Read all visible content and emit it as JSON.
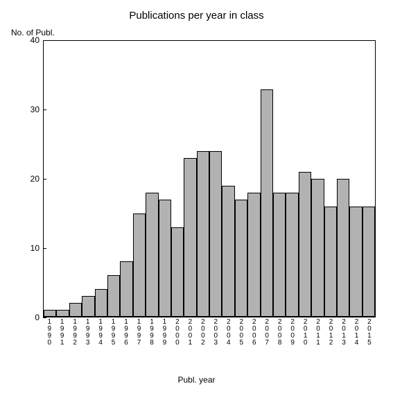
{
  "chart": {
    "type": "bar",
    "title": "Publications per year in class",
    "title_fontsize": 15,
    "ylabel": "No. of Publ.",
    "xlabel": "Publ. year",
    "label_fontsize": 12,
    "tick_fontsize": 12,
    "xtick_fontsize": 10,
    "categories": [
      "1990",
      "1991",
      "1992",
      "1993",
      "1994",
      "1995",
      "1996",
      "1997",
      "1998",
      "1999",
      "2000",
      "2001",
      "2002",
      "2003",
      "2004",
      "2005",
      "2006",
      "2007",
      "2008",
      "2009",
      "2010",
      "2011",
      "2012",
      "2013",
      "2014",
      "2015"
    ],
    "values": [
      1,
      1,
      2,
      3,
      4,
      6,
      8,
      15,
      18,
      17,
      13,
      23,
      24,
      24,
      19,
      17,
      18,
      33,
      18,
      18,
      21,
      20,
      16,
      20,
      16,
      16
    ],
    "ylim": [
      0,
      40
    ],
    "ytick_step": 10,
    "bar_color": "#b2b2b2",
    "bar_border": "#000000",
    "background_color": "#ffffff",
    "axis_color": "#000000",
    "bar_width": 1.0
  }
}
